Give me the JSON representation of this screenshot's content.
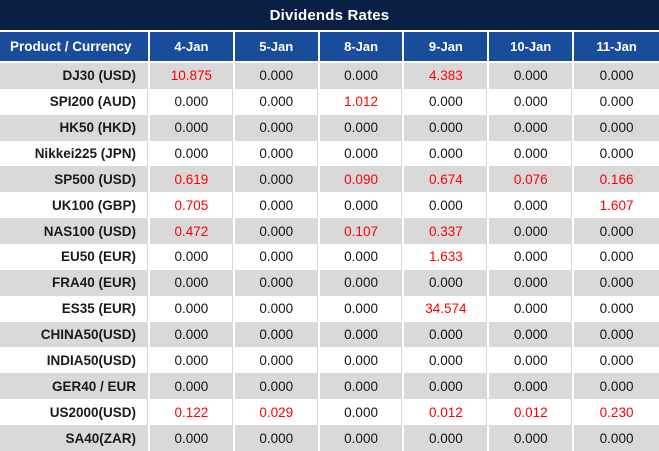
{
  "title": "Dividends Rates",
  "colors": {
    "title_bg": "#0A1F44",
    "header_bg": "#1A4C9C",
    "header_text": "#FFFFFF",
    "row_alt_bg": "#D9D9D9",
    "row_bg": "#FFFFFF",
    "value_text": "#141414",
    "value_highlight": "#FE0000",
    "divider": "#FFFFFF"
  },
  "chart_data": {
    "type": "table",
    "title": "Dividends Rates",
    "columns": [
      "Product / Currency",
      "4-Jan",
      "5-Jan",
      "8-Jan",
      "9-Jan",
      "10-Jan",
      "11-Jan"
    ],
    "rows": [
      {
        "product": "DJ30 (USD)",
        "values": [
          "10.875",
          "0.000",
          "0.000",
          "4.383",
          "0.000",
          "0.000"
        ],
        "highlight": [
          true,
          false,
          false,
          true,
          false,
          false
        ]
      },
      {
        "product": "SPI200 (AUD)",
        "values": [
          "0.000",
          "0.000",
          "1.012",
          "0.000",
          "0.000",
          "0.000"
        ],
        "highlight": [
          false,
          false,
          true,
          false,
          false,
          false
        ]
      },
      {
        "product": "HK50 (HKD)",
        "values": [
          "0.000",
          "0.000",
          "0.000",
          "0.000",
          "0.000",
          "0.000"
        ],
        "highlight": [
          false,
          false,
          false,
          false,
          false,
          false
        ]
      },
      {
        "product": "Nikkei225 (JPN)",
        "values": [
          "0.000",
          "0.000",
          "0.000",
          "0.000",
          "0.000",
          "0.000"
        ],
        "highlight": [
          false,
          false,
          false,
          false,
          false,
          false
        ]
      },
      {
        "product": "SP500 (USD)",
        "values": [
          "0.619",
          "0.000",
          "0.090",
          "0.674",
          "0.076",
          "0.166"
        ],
        "highlight": [
          true,
          false,
          true,
          true,
          true,
          true
        ]
      },
      {
        "product": "UK100 (GBP)",
        "values": [
          "0.705",
          "0.000",
          "0.000",
          "0.000",
          "0.000",
          "1.607"
        ],
        "highlight": [
          true,
          false,
          false,
          false,
          false,
          true
        ]
      },
      {
        "product": "NAS100 (USD)",
        "values": [
          "0.472",
          "0.000",
          "0.107",
          "0.337",
          "0.000",
          "0.000"
        ],
        "highlight": [
          true,
          false,
          true,
          true,
          false,
          false
        ]
      },
      {
        "product": "EU50 (EUR)",
        "values": [
          "0.000",
          "0.000",
          "0.000",
          "1.633",
          "0.000",
          "0.000"
        ],
        "highlight": [
          false,
          false,
          false,
          true,
          false,
          false
        ]
      },
      {
        "product": "FRA40 (EUR)",
        "values": [
          "0.000",
          "0.000",
          "0.000",
          "0.000",
          "0.000",
          "0.000"
        ],
        "highlight": [
          false,
          false,
          false,
          false,
          false,
          false
        ]
      },
      {
        "product": "ES35 (EUR)",
        "values": [
          "0.000",
          "0.000",
          "0.000",
          "34.574",
          "0.000",
          "0.000"
        ],
        "highlight": [
          false,
          false,
          false,
          true,
          false,
          false
        ]
      },
      {
        "product": "CHINA50(USD)",
        "values": [
          "0.000",
          "0.000",
          "0.000",
          "0.000",
          "0.000",
          "0.000"
        ],
        "highlight": [
          false,
          false,
          false,
          false,
          false,
          false
        ]
      },
      {
        "product": "INDIA50(USD)",
        "values": [
          "0.000",
          "0.000",
          "0.000",
          "0.000",
          "0.000",
          "0.000"
        ],
        "highlight": [
          false,
          false,
          false,
          false,
          false,
          false
        ]
      },
      {
        "product": "GER40 / EUR",
        "values": [
          "0.000",
          "0.000",
          "0.000",
          "0.000",
          "0.000",
          "0.000"
        ],
        "highlight": [
          false,
          false,
          false,
          false,
          false,
          false
        ]
      },
      {
        "product": "US2000(USD)",
        "values": [
          "0.122",
          "0.029",
          "0.000",
          "0.012",
          "0.012",
          "0.230"
        ],
        "highlight": [
          true,
          true,
          false,
          true,
          true,
          true
        ]
      },
      {
        "product": "SA40(ZAR)",
        "values": [
          "0.000",
          "0.000",
          "0.000",
          "0.000",
          "0.000",
          "0.000"
        ],
        "highlight": [
          false,
          false,
          false,
          false,
          false,
          false
        ]
      }
    ]
  }
}
